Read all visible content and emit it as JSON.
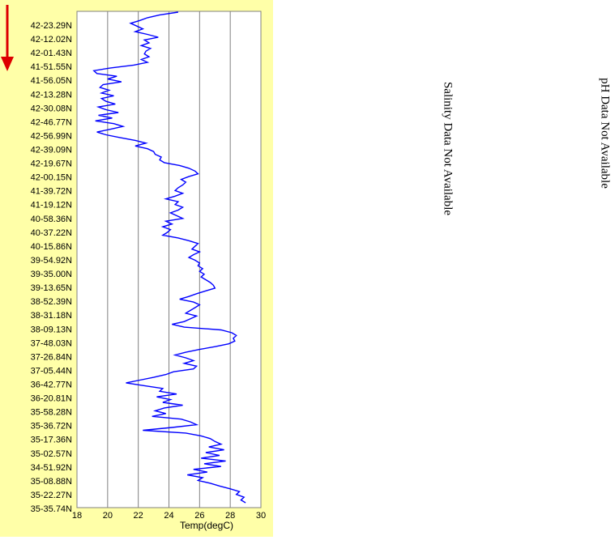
{
  "chart_data": {
    "type": "line",
    "orientation": "horizontal-profile",
    "xlabel": "Temp(degC)",
    "xlim": [
      18,
      30
    ],
    "xticks": [
      18,
      20,
      22,
      24,
      26,
      28,
      30
    ],
    "grid": "vertical",
    "y_ticklabels": [
      "42-23.29N",
      "42-12.02N",
      "42-01.43N",
      "41-51.55N",
      "41-56.05N",
      "42-13.28N",
      "42-30.08N",
      "42-46.77N",
      "42-56.99N",
      "42-39.09N",
      "42-19.67N",
      "42-00.15N",
      "41-39.72N",
      "41-19.12N",
      "40-58.36N",
      "40-37.22N",
      "40-15.86N",
      "39-54.92N",
      "39-35.00N",
      "39-13.65N",
      "38-52.39N",
      "38-31.18N",
      "38-09.13N",
      "37-48.03N",
      "37-26.84N",
      "37-05.44N",
      "36-42.77N",
      "36-20.81N",
      "35-58.28N",
      "35-36.72N",
      "35-17.36N",
      "35-02.57N",
      "34-51.92N",
      "35-08.88N",
      "35-22.27N",
      "35-35.74N"
    ],
    "series": [
      {
        "color": "#0000ff",
        "x": [
          24.6,
          23.4,
          22.6,
          22.1,
          21.5,
          21.9,
          22.3,
          21.8,
          22.6,
          23.3,
          22.4,
          22.7,
          22.2,
          22.8,
          22.5,
          22.4,
          22.7,
          22.2,
          22.6,
          21.7,
          20.2,
          19.1,
          19.3,
          20.6,
          20.0,
          20.9,
          19.7,
          19.5,
          20.1,
          19.6,
          20.4,
          19.6,
          19.9,
          20.5,
          19.4,
          19.9,
          20.7,
          19.4,
          20.3,
          19.2,
          20.4,
          21.0,
          20.2,
          19.3,
          19.9,
          20.8,
          21.8,
          22.5,
          21.8,
          22.6,
          23.0,
          23.1,
          23.5,
          23.4,
          23.7,
          24.7,
          25.3,
          25.7,
          25.9,
          25.3,
          24.8,
          25.1,
          24.9,
          24.6,
          24.4,
          24.9,
          24.4,
          23.8,
          24.6,
          24.4,
          24.9,
          24.6,
          24.1,
          24.5,
          24.9,
          23.8,
          24.2,
          23.6,
          24.1,
          23.9,
          23.6,
          24.6,
          25.3,
          25.9,
          25.7,
          25.5,
          26.0,
          25.6,
          25.3,
          25.7,
          26.0,
          25.9,
          26.2,
          26.0,
          26.3,
          26.1,
          26.4,
          26.7,
          26.9,
          27.0,
          26.4,
          25.8,
          25.3,
          24.7,
          25.6,
          26.0,
          25.7,
          25.4,
          25.1,
          25.8,
          25.4,
          25.0,
          24.2,
          25.0,
          27.4,
          28.1,
          28.4,
          28.2,
          28.3,
          27.9,
          27.0,
          26.0,
          25.1,
          24.4,
          25.1,
          25.6,
          25.0,
          25.8,
          25.6,
          24.3,
          23.8,
          23.0,
          22.1,
          21.2,
          22.4,
          23.6,
          23.4,
          24.5,
          23.2,
          24.1,
          23.6,
          24.9,
          23.7,
          23.1,
          23.8,
          22.9,
          24.8,
          25.4,
          25.8,
          24.2,
          22.3,
          25.1,
          26.1,
          26.7,
          27.0,
          27.4,
          26.6,
          27.6,
          26.4,
          27.3,
          26.1,
          27.7,
          26.3,
          27.4,
          25.6,
          26.5,
          25.2,
          26.2,
          25.9,
          26.7,
          27.3,
          28.0,
          28.6,
          28.4,
          28.9,
          28.7,
          29.0
        ]
      }
    ]
  },
  "notes": {
    "salinity": "Salinity Data Not Available",
    "ph": "pH Data Not Available"
  },
  "colors": {
    "panel_background": "#ffffa8",
    "plot_background": "#ffffff",
    "series_line": "#0000ff",
    "arrow": "#dd0000",
    "gridline": "#808080"
  }
}
